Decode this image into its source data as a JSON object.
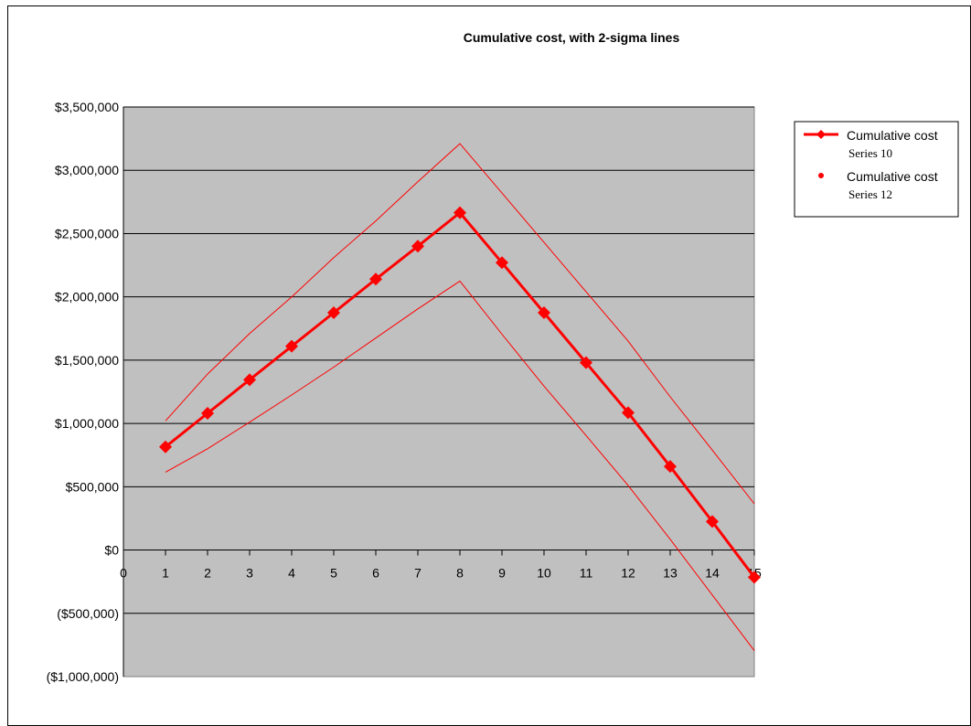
{
  "chart_data": {
    "type": "line",
    "title": "Cumulative cost, with 2-sigma lines",
    "xlabel": "",
    "ylabel": "",
    "x_ticks": [
      "0",
      "1",
      "2",
      "3",
      "4",
      "5",
      "6",
      "7",
      "8",
      "9",
      "10",
      "11",
      "12",
      "13",
      "14",
      "15"
    ],
    "xlim": [
      0,
      15
    ],
    "y_ticks": [
      {
        "value": 3500000,
        "label": "$3,500,000"
      },
      {
        "value": 3000000,
        "label": "$3,000,000"
      },
      {
        "value": 2500000,
        "label": "$2,500,000"
      },
      {
        "value": 2000000,
        "label": "$2,000,000"
      },
      {
        "value": 1500000,
        "label": "$1,500,000"
      },
      {
        "value": 1000000,
        "label": "$1,000,000"
      },
      {
        "value": 500000,
        "label": "$500,000"
      },
      {
        "value": 0,
        "label": "$0"
      },
      {
        "value": -500000,
        "label": "($500,000)"
      },
      {
        "value": -1000000,
        "label": "($1,000,000)"
      }
    ],
    "ylim": [
      -1000000,
      3500000
    ],
    "grid": true,
    "legend_position": "right",
    "colors": {
      "series": "#ff0000",
      "plot_background": "#c0c0c0",
      "negative_tick_label": "#ff0000",
      "gridline": "#000000"
    },
    "series": [
      {
        "name": "Cumulative cost",
        "subtitle": "Series 10",
        "style": "line-marker",
        "x": [
          1,
          2,
          3,
          4,
          5,
          6,
          7,
          8,
          9,
          10,
          11,
          12,
          13,
          14,
          15
        ],
        "values": [
          815000,
          1080000,
          1345000,
          1610000,
          1875000,
          2140000,
          2400000,
          2665000,
          2270000,
          1875000,
          1480000,
          1085000,
          660000,
          225000,
          -215000
        ]
      },
      {
        "name": "Cumulative cost",
        "subtitle": "Series 12",
        "style": "line-thin",
        "x": [
          1,
          2,
          3,
          4,
          5,
          6,
          7,
          8,
          9,
          10,
          11,
          12,
          13,
          14,
          15
        ],
        "values": [
          1020000,
          1390000,
          1710000,
          2000000,
          2310000,
          2600000,
          2910000,
          3210000,
          2820000,
          2430000,
          2040000,
          1650000,
          1210000,
          790000,
          365000
        ]
      },
      {
        "name": "",
        "style": "line-thin",
        "x": [
          1,
          2,
          3,
          4,
          5,
          6,
          7,
          8,
          9,
          10,
          11,
          12,
          13,
          14,
          15
        ],
        "values": [
          615000,
          800000,
          1010000,
          1225000,
          1445000,
          1675000,
          1905000,
          2125000,
          1705000,
          1295000,
          905000,
          510000,
          85000,
          -355000,
          -795000
        ]
      }
    ]
  }
}
